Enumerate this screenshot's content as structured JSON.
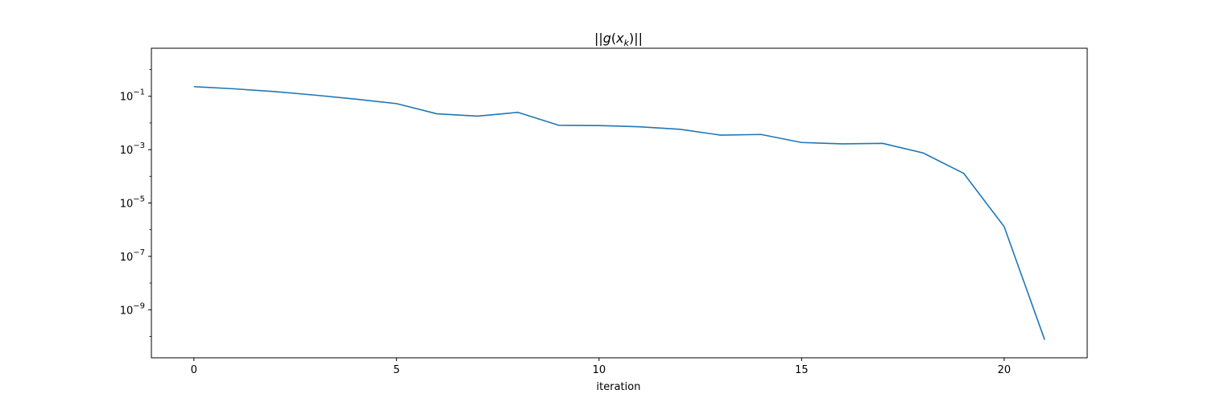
{
  "chart_data": {
    "type": "line",
    "title": "||g(x_k)||",
    "title_parts": {
      "pre": "||",
      "g": "g",
      "open": "(",
      "x": "x",
      "sub": "k",
      "close": ")||"
    },
    "xlabel": "iteration",
    "ylabel": "",
    "yscale": "log",
    "xlim": [
      -1.05,
      22.05
    ],
    "ylim_log10": [
      -10.8,
      0.8
    ],
    "xticks": [
      0,
      5,
      10,
      15,
      20
    ],
    "yticks_exponents": [
      -1,
      -3,
      -5,
      -7,
      -9
    ],
    "grid": false,
    "legend": "none",
    "series": [
      {
        "color": "#1f77b4",
        "x": [
          0,
          1,
          2,
          3,
          4,
          5,
          6,
          7,
          8,
          9,
          10,
          11,
          12,
          13,
          14,
          15,
          16,
          17,
          18,
          19,
          20,
          21
        ],
        "y": [
          0.23,
          0.19,
          0.15,
          0.11,
          0.078,
          0.053,
          0.022,
          0.018,
          0.025,
          0.0082,
          0.008,
          0.0072,
          0.0058,
          0.0035,
          0.0037,
          0.00185,
          0.00165,
          0.00172,
          0.00075,
          0.00013,
          1.3e-06,
          7.52e-11
        ]
      }
    ]
  }
}
